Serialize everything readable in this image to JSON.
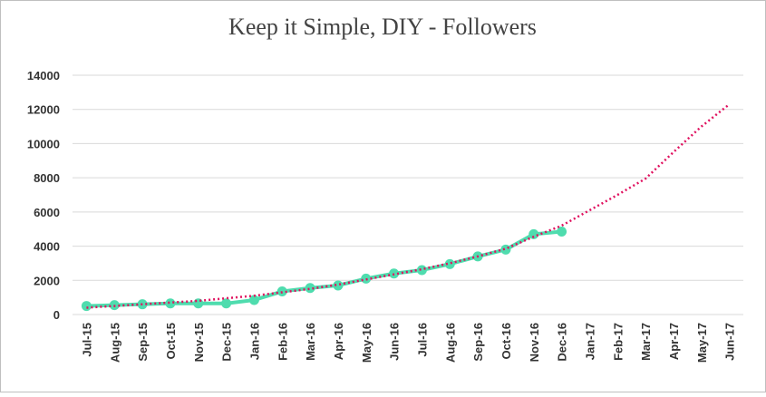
{
  "chart_data": {
    "type": "line",
    "title": "Keep it Simple, DIY - Followers",
    "categories": [
      "Jul-15",
      "Aug-15",
      "Sep-15",
      "Oct-15",
      "Nov-15",
      "Dec-15",
      "Jan-16",
      "Feb-16",
      "Mar-16",
      "Apr-16",
      "May-16",
      "Jun-16",
      "Jul-16",
      "Aug-16",
      "Sep-16",
      "Oct-16",
      "Nov-16",
      "Dec-16",
      "Jan-17",
      "Feb-17",
      "Mar-17",
      "Apr-17",
      "May-17",
      "Jun-17"
    ],
    "series": [
      {
        "color": "#4fdcae",
        "values": [
          500,
          550,
          600,
          650,
          650,
          650,
          850,
          1350,
          1550,
          1700,
          2100,
          2400,
          2600,
          2950,
          3400,
          3800,
          4700,
          4850,
          null,
          null,
          null,
          null,
          null,
          null
        ]
      },
      {
        "color": "#e0115f",
        "dotted": true,
        "values": [
          400,
          500,
          600,
          700,
          800,
          950,
          1100,
          1300,
          1500,
          1750,
          2050,
          2350,
          2650,
          3000,
          3400,
          3850,
          4550,
          5200,
          6100,
          7000,
          7950,
          9500,
          11000,
          12300
        ]
      }
    ],
    "ylim": [
      0,
      14000
    ],
    "yticks": [
      0,
      2000,
      4000,
      6000,
      8000,
      10000,
      12000,
      14000
    ],
    "grid": true
  }
}
